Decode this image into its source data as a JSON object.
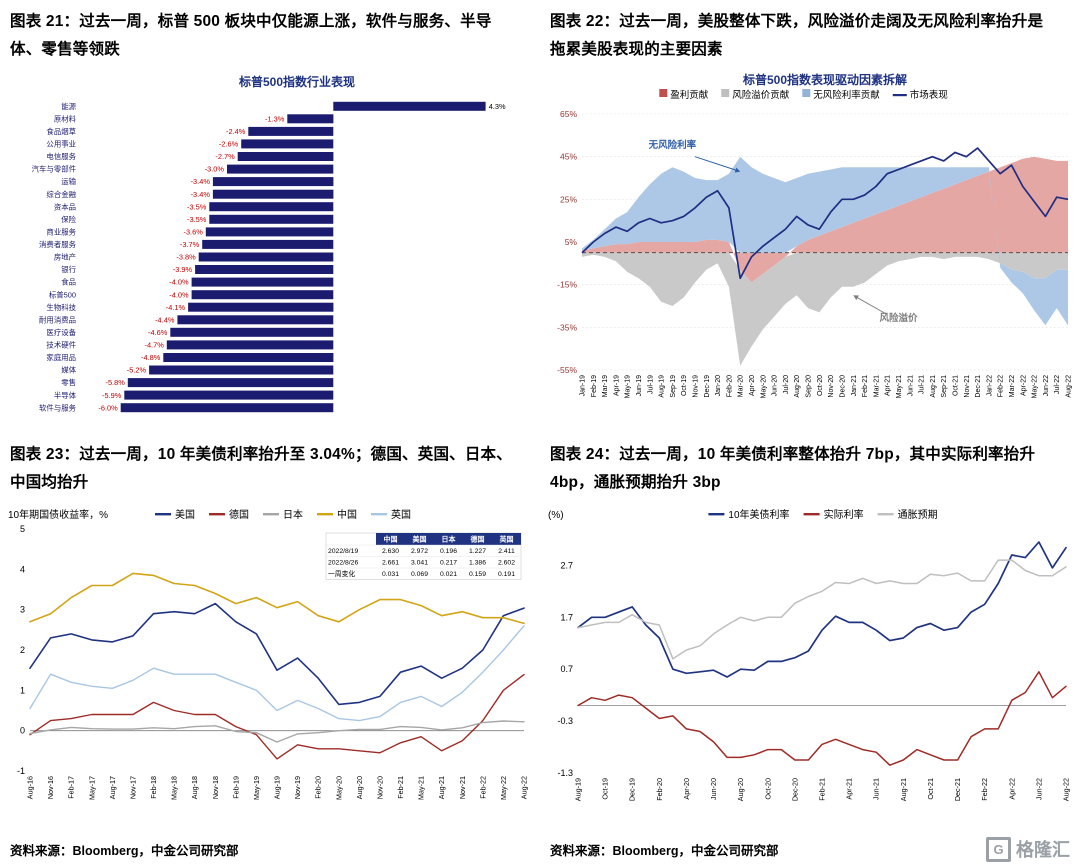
{
  "page_background": "#ffffff",
  "source_note": "资料来源：Bloomberg，中金公司研究部",
  "watermark": {
    "logo_letter": "G",
    "logo_text": "格隆汇",
    "color": "#9aa0a6"
  },
  "figures": [
    {
      "heading": "图表 21：过去一周，标普 500 板块中仅能源上涨，软件与服务、半导体、零售等领跌"
    },
    {
      "heading": "图表 22：过去一周，美股整体下跌，风险溢价走阔及无风险利率抬升是拖累美股表现的主要因素"
    },
    {
      "heading": "图表 23：过去一周，10 年美债利率抬升至 3.04%；德国、英国、日本、中国均抬升"
    },
    {
      "heading": "图表 24：过去一周，10 年美债利率整体抬升 7bp，其中实际利率抬升 4bp，通胀预期抬升 3bp"
    }
  ],
  "chart_data": [
    {
      "type": "bar",
      "orientation": "horizontal",
      "title": "标普500指数行业表现",
      "title_color": "#1F3382",
      "bar_color": "#1B1B6F",
      "category_color": "#1a1a70",
      "negative_label_color": "#C00000",
      "positive_label_color": "#000000",
      "categories": [
        "能源",
        "原材料",
        "食品烟草",
        "公用事业",
        "电信服务",
        "汽车与零部件",
        "运输",
        "综合金融",
        "资本品",
        "保险",
        "商业服务",
        "消费者服务",
        "房地产",
        "银行",
        "食品",
        "标普500",
        "生物科技",
        "耐用消费品",
        "医疗设备",
        "技术硬件",
        "家庭用品",
        "媒体",
        "零售",
        "半导体",
        "软件与服务"
      ],
      "values": [
        4.3,
        -1.3,
        -2.4,
        -2.6,
        -2.7,
        -3.0,
        -3.4,
        -3.4,
        -3.5,
        -3.5,
        -3.6,
        -3.7,
        -3.8,
        -3.9,
        -4.0,
        -4.0,
        -4.1,
        -4.4,
        -4.6,
        -4.7,
        -4.8,
        -5.2,
        -5.8,
        -5.9,
        -6.0
      ],
      "value_labels": [
        "4.3%",
        "-1.3%",
        "-2.4%",
        "-2.6%",
        "-2.7%",
        "-3.0%",
        "-3.4%",
        "-3.4%",
        "-3.5%",
        "-3.5%",
        "-3.6%",
        "-3.7%",
        "-3.8%",
        "-3.9%",
        "-4.0%",
        "-4.0%",
        "-4.1%",
        "-4.4%",
        "-4.6%",
        "-4.7%",
        "-4.8%",
        "-5.2%",
        "-5.8%",
        "-5.9%",
        "-6.0%"
      ]
    },
    {
      "type": "area",
      "title": "标普500指数表现驱动因素拆解",
      "title_color": "#1F3382",
      "ytick_color": "#943634",
      "ylim": [
        -55,
        65
      ],
      "yticks": [
        "65%",
        "45%",
        "25%",
        "5%",
        "-15%",
        "-35%",
        "-55%"
      ],
      "x": [
        "Jan-19",
        "Feb-19",
        "Mar-19",
        "Apr-19",
        "May-19",
        "Jun-19",
        "Jul-19",
        "Aug-19",
        "Sep-19",
        "Oct-19",
        "Nov-19",
        "Dec-19",
        "Jan-20",
        "Feb-20",
        "Mar-20",
        "Apr-20",
        "May-20",
        "Jun-20",
        "Jul-20",
        "Aug-20",
        "Sep-20",
        "Oct-20",
        "Nov-20",
        "Dec-20",
        "Jan-21",
        "Feb-21",
        "Mar-21",
        "Apr-21",
        "May-21",
        "Jun-21",
        "Jul-21",
        "Aug-21",
        "Sep-21",
        "Oct-21",
        "Nov-21",
        "Dec-21",
        "Jan-22",
        "Feb-22",
        "Mar-22",
        "Apr-22",
        "May-22",
        "Jun-22",
        "Jul-22",
        "Aug-22"
      ],
      "series": [
        {
          "name": "盈利贡献",
          "key": "earnings",
          "role": "stacked-area",
          "color": "#C0504D",
          "fill": "#E4A7A4",
          "values": [
            1,
            2,
            3,
            4,
            4,
            5,
            5,
            5,
            5,
            5,
            5,
            6,
            6,
            5,
            -8,
            -14,
            -10,
            -6,
            -2,
            3,
            6,
            8,
            10,
            12,
            14,
            16,
            18,
            20,
            22,
            24,
            26,
            28,
            30,
            32,
            34,
            36,
            38,
            40,
            42,
            44,
            45,
            44,
            43,
            43
          ]
        },
        {
          "name": "风险溢价贡献",
          "key": "risk-premium",
          "role": "stacked-area",
          "color": "#BFBFBF",
          "fill": "#C9C9C9",
          "values": [
            -2,
            -1,
            -2,
            -4,
            -9,
            -12,
            -16,
            -23,
            -25,
            -21,
            -14,
            -8,
            -5,
            -16,
            -45,
            -30,
            -26,
            -24,
            -22,
            -20,
            -26,
            -28,
            -21,
            -16,
            -16,
            -14,
            -10,
            -6,
            -4,
            -3,
            -2,
            -2,
            -3,
            -2,
            -2,
            -2,
            -3,
            -5,
            -8,
            -9,
            -12,
            -12,
            -8,
            -8
          ]
        },
        {
          "name": "无风险利率贡献",
          "key": "risk-free-rate",
          "role": "stacked-area",
          "color": "#95B3D7",
          "fill": "#ADC8E6",
          "values": [
            1,
            4,
            8,
            12,
            15,
            21,
            27,
            32,
            35,
            33,
            30,
            28,
            28,
            32,
            45,
            40,
            37,
            35,
            33,
            32,
            31,
            30,
            29,
            28,
            26,
            24,
            22,
            20,
            18,
            16,
            14,
            12,
            10,
            8,
            6,
            4,
            2,
            -2,
            -6,
            -10,
            -15,
            -22,
            -18,
            -26
          ]
        },
        {
          "name": "市场表现",
          "key": "market",
          "role": "line",
          "color": "#1F2D82",
          "values": [
            0,
            5,
            9,
            12,
            10,
            14,
            16,
            14,
            15,
            17,
            21,
            26,
            29,
            21,
            -12,
            -2,
            3,
            7,
            11,
            17,
            13,
            11,
            19,
            25,
            25,
            27,
            31,
            37,
            39,
            41,
            43,
            45,
            43,
            47,
            45,
            49,
            43,
            37,
            41,
            31,
            24,
            17,
            26,
            25
          ]
        }
      ],
      "annotations": [
        {
          "text": "无风险利率",
          "color": "#2F5FA8",
          "label_x": "Sep-19",
          "label_y": 49,
          "arrow_from": [
            "Nov-19",
            45
          ],
          "arrow_to": [
            "Mar-20",
            38
          ]
        },
        {
          "text": "风险溢价",
          "color": "#7F7F7F",
          "label_x": "May-21",
          "label_y": -32,
          "arrow_from": [
            "Apr-21",
            -29
          ],
          "arrow_to": [
            "Jan-21",
            -20
          ]
        }
      ]
    },
    {
      "type": "line",
      "corner_label": "10年期国债收益率，%",
      "ylim": [
        -1,
        5
      ],
      "yticks": [
        "5",
        "4",
        "3",
        "2",
        "1",
        "0",
        "-1"
      ],
      "x": [
        "Aug-16",
        "Nov-16",
        "Feb-17",
        "May-17",
        "Aug-17",
        "Nov-17",
        "Feb-18",
        "May-18",
        "Aug-18",
        "Nov-18",
        "Feb-19",
        "May-19",
        "Aug-19",
        "Nov-19",
        "Feb-20",
        "May-20",
        "Aug-20",
        "Nov-20",
        "Feb-21",
        "May-21",
        "Aug-21",
        "Nov-21",
        "Feb-22",
        "May-22",
        "Aug-22"
      ],
      "series": [
        {
          "name": "美国",
          "key": "us",
          "color": "#1F3382",
          "width": 1.6,
          "values": [
            1.55,
            2.3,
            2.4,
            2.25,
            2.2,
            2.35,
            2.9,
            2.95,
            2.9,
            3.15,
            2.7,
            2.4,
            1.5,
            1.8,
            1.3,
            0.65,
            0.7,
            0.85,
            1.45,
            1.6,
            1.3,
            1.55,
            2.0,
            2.85,
            3.04
          ]
        },
        {
          "name": "德国",
          "key": "germany",
          "color": "#9E2B25",
          "width": 1.4,
          "values": [
            -0.1,
            0.25,
            0.3,
            0.4,
            0.4,
            0.4,
            0.7,
            0.5,
            0.4,
            0.4,
            0.1,
            -0.1,
            -0.7,
            -0.35,
            -0.45,
            -0.45,
            -0.5,
            -0.55,
            -0.3,
            -0.15,
            -0.5,
            -0.25,
            0.25,
            1.0,
            1.39
          ]
        },
        {
          "name": "日本",
          "key": "japan",
          "color": "#A6A6A6",
          "width": 1.4,
          "values": [
            -0.07,
            0.02,
            0.08,
            0.05,
            0.04,
            0.04,
            0.07,
            0.05,
            0.1,
            0.12,
            -0.02,
            -0.05,
            -0.28,
            -0.08,
            -0.05,
            0.0,
            0.03,
            0.03,
            0.1,
            0.08,
            0.02,
            0.07,
            0.2,
            0.24,
            0.22
          ]
        },
        {
          "name": "中国",
          "key": "china",
          "color": "#D2A517",
          "width": 1.6,
          "values": [
            2.7,
            2.9,
            3.3,
            3.6,
            3.6,
            3.9,
            3.85,
            3.65,
            3.6,
            3.4,
            3.15,
            3.3,
            3.05,
            3.2,
            2.85,
            2.7,
            3.0,
            3.25,
            3.25,
            3.1,
            2.85,
            2.95,
            2.8,
            2.8,
            2.66
          ]
        },
        {
          "name": "英国",
          "key": "uk",
          "color": "#A8C6E4",
          "width": 1.4,
          "values": [
            0.55,
            1.4,
            1.2,
            1.1,
            1.05,
            1.25,
            1.55,
            1.4,
            1.4,
            1.4,
            1.2,
            1.0,
            0.5,
            0.75,
            0.55,
            0.3,
            0.25,
            0.35,
            0.7,
            0.85,
            0.6,
            0.95,
            1.45,
            2.0,
            2.6
          ]
        }
      ],
      "inset_table": {
        "header_bg": "#1F3382",
        "col_headers": [
          "",
          "中国",
          "美国",
          "日本",
          "德国",
          "英国"
        ],
        "rows": [
          [
            "2022/8/19",
            "2.630",
            "2.972",
            "0.196",
            "1.227",
            "2.411"
          ],
          [
            "2022/8/26",
            "2.661",
            "3.041",
            "0.217",
            "1.386",
            "2.602"
          ],
          [
            "一周变化",
            "0.031",
            "0.069",
            "0.021",
            "0.159",
            "0.191"
          ]
        ]
      }
    },
    {
      "type": "line",
      "corner_label": "(%)",
      "ylim": [
        -1.3,
        3.4
      ],
      "yticks": [
        "2.7",
        "1.7",
        "0.7",
        "-0.3",
        "-1.3"
      ],
      "xtick_every": 2,
      "x": [
        "Aug-19",
        "Sep-19",
        "Oct-19",
        "Nov-19",
        "Dec-19",
        "Jan-20",
        "Feb-20",
        "Mar-20",
        "Apr-20",
        "May-20",
        "Jun-20",
        "Jul-20",
        "Aug-20",
        "Sep-20",
        "Oct-20",
        "Nov-20",
        "Dec-20",
        "Jan-21",
        "Feb-21",
        "Mar-21",
        "Apr-21",
        "May-21",
        "Jun-21",
        "Jul-21",
        "Aug-21",
        "Sep-21",
        "Oct-21",
        "Nov-21",
        "Dec-21",
        "Jan-22",
        "Feb-22",
        "Mar-22",
        "Apr-22",
        "May-22",
        "Jun-22",
        "Jul-22",
        "Aug-22"
      ],
      "series": [
        {
          "name": "10年美债利率",
          "key": "us-10y",
          "color": "#1F3382",
          "width": 1.7,
          "values": [
            1.5,
            1.7,
            1.7,
            1.8,
            1.9,
            1.55,
            1.3,
            0.7,
            0.62,
            0.65,
            0.68,
            0.55,
            0.7,
            0.68,
            0.85,
            0.85,
            0.92,
            1.05,
            1.45,
            1.72,
            1.6,
            1.6,
            1.45,
            1.25,
            1.3,
            1.5,
            1.58,
            1.45,
            1.5,
            1.8,
            1.95,
            2.35,
            2.9,
            2.85,
            3.15,
            2.65,
            3.04
          ]
        },
        {
          "name": "实际利率",
          "key": "real-rate",
          "color": "#9E2B25",
          "width": 1.5,
          "values": [
            0.0,
            0.15,
            0.1,
            0.2,
            0.15,
            -0.05,
            -0.25,
            -0.2,
            -0.45,
            -0.5,
            -0.7,
            -1.0,
            -1.0,
            -0.95,
            -0.85,
            -0.85,
            -1.05,
            -1.05,
            -0.75,
            -0.65,
            -0.75,
            -0.85,
            -0.9,
            -1.15,
            -1.05,
            -0.85,
            -0.95,
            -1.05,
            -1.05,
            -0.6,
            -0.45,
            -0.45,
            0.1,
            0.25,
            0.65,
            0.15,
            0.37
          ]
        },
        {
          "name": "通胀预期",
          "key": "breakeven-inflation",
          "color": "#BFBFBF",
          "width": 1.5,
          "values": [
            1.5,
            1.55,
            1.6,
            1.6,
            1.75,
            1.6,
            1.55,
            0.9,
            1.07,
            1.15,
            1.38,
            1.55,
            1.7,
            1.63,
            1.7,
            1.7,
            1.97,
            2.1,
            2.2,
            2.37,
            2.35,
            2.45,
            2.35,
            2.4,
            2.35,
            2.35,
            2.53,
            2.5,
            2.55,
            2.4,
            2.4,
            2.8,
            2.8,
            2.6,
            2.5,
            2.5,
            2.67
          ]
        }
      ]
    }
  ]
}
